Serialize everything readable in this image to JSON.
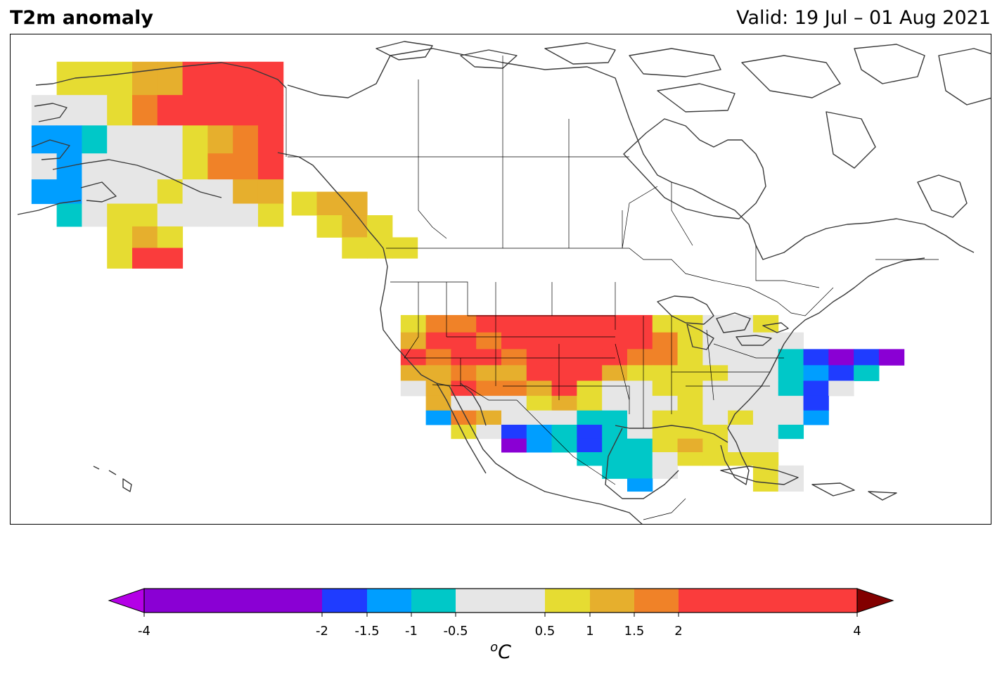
{
  "header": {
    "title": "T2m anomaly",
    "valid": "Valid: 19 Jul – 01 Aug 2021"
  },
  "colors": {
    "-4": "#8a00d4",
    "-2": "#1f3cff",
    "-1.5": "#009eff",
    "-1": "#00c8c8",
    "0": "#e6e6e6",
    "0.5": "#e6dc32",
    "1": "#e6af2d",
    "1.5": "#f08228",
    "2": "#fa3c3c",
    "4": "#820000",
    "coast": "#3a3a3a",
    "border": "#000000"
  },
  "legend": {
    "unit_base": "C",
    "unit_sup": "o",
    "bins": [
      {
        "from": -4,
        "to": -2,
        "color": "#8a00d4"
      },
      {
        "from": -2,
        "to": -1.5,
        "color": "#1f3cff"
      },
      {
        "from": -1.5,
        "to": -1,
        "color": "#009eff"
      },
      {
        "from": -1,
        "to": -0.5,
        "color": "#00c8c8"
      },
      {
        "from": -0.5,
        "to": 0.5,
        "color": "#e6e6e6"
      },
      {
        "from": 0.5,
        "to": 1,
        "color": "#e6dc32"
      },
      {
        "from": 1,
        "to": 1.5,
        "color": "#e6af2d"
      },
      {
        "from": 1.5,
        "to": 2,
        "color": "#f08228"
      },
      {
        "from": 2,
        "to": 4,
        "color": "#fa3c3c"
      }
    ],
    "under_color": "#b400e6",
    "over_color": "#820000",
    "ticks": [
      "-4",
      "-2",
      "-1.5",
      "-1",
      "-0.5",
      "0.5",
      "1",
      "1.5",
      "2",
      "4"
    ]
  },
  "map": {
    "region": "North America",
    "projection": "Mercator",
    "anomaly_cells": [
      {
        "lon": -165,
        "lat": 70,
        "value": 0.6
      },
      {
        "lon": -162,
        "lat": 70,
        "value": 0.6
      },
      {
        "lon": -159,
        "lat": 70,
        "value": 0.6
      },
      {
        "lon": -156,
        "lat": 70,
        "value": 1.2
      },
      {
        "lon": -153,
        "lat": 70,
        "value": 1.2
      },
      {
        "lon": -150,
        "lat": 70,
        "value": 2.5
      },
      {
        "lon": -147,
        "lat": 70,
        "value": 2.5
      },
      {
        "lon": -144,
        "lat": 70,
        "value": 2.5
      },
      {
        "lon": -141,
        "lat": 70,
        "value": 2.5
      },
      {
        "lon": -168,
        "lat": 68,
        "value": 0.0
      },
      {
        "lon": -165,
        "lat": 68,
        "value": 0.0
      },
      {
        "lon": -162,
        "lat": 68,
        "value": 0.0
      },
      {
        "lon": -159,
        "lat": 68,
        "value": 0.6
      },
      {
        "lon": -156,
        "lat": 68,
        "value": 1.7
      },
      {
        "lon": -153,
        "lat": 68,
        "value": 2.5
      },
      {
        "lon": -150,
        "lat": 68,
        "value": 2.5
      },
      {
        "lon": -147,
        "lat": 68,
        "value": 2.5
      },
      {
        "lon": -144,
        "lat": 68,
        "value": 2.5
      },
      {
        "lon": -141,
        "lat": 68,
        "value": 2.5
      },
      {
        "lon": -168,
        "lat": 66,
        "value": -1.2
      },
      {
        "lon": -165,
        "lat": 66,
        "value": -1.2
      },
      {
        "lon": -162,
        "lat": 66,
        "value": -0.7
      },
      {
        "lon": -159,
        "lat": 66,
        "value": 0.0
      },
      {
        "lon": -156,
        "lat": 66,
        "value": 0.0
      },
      {
        "lon": -153,
        "lat": 66,
        "value": 0.0
      },
      {
        "lon": -150,
        "lat": 66,
        "value": 0.6
      },
      {
        "lon": -147,
        "lat": 66,
        "value": 1.2
      },
      {
        "lon": -144,
        "lat": 66,
        "value": 1.7
      },
      {
        "lon": -141,
        "lat": 66,
        "value": 2.5
      },
      {
        "lon": -168,
        "lat": 64,
        "value": 0.0
      },
      {
        "lon": -165,
        "lat": 64,
        "value": -1.2
      },
      {
        "lon": -162,
        "lat": 64,
        "value": 0.0
      },
      {
        "lon": -159,
        "lat": 64,
        "value": 0.0
      },
      {
        "lon": -156,
        "lat": 64,
        "value": 0.0
      },
      {
        "lon": -153,
        "lat": 64,
        "value": 0.0
      },
      {
        "lon": -150,
        "lat": 64,
        "value": 0.6
      },
      {
        "lon": -147,
        "lat": 64,
        "value": 1.7
      },
      {
        "lon": -144,
        "lat": 64,
        "value": 1.7
      },
      {
        "lon": -141,
        "lat": 64,
        "value": 2.5
      },
      {
        "lon": -168,
        "lat": 62,
        "value": -1.2
      },
      {
        "lon": -165,
        "lat": 62,
        "value": -1.2
      },
      {
        "lon": -162,
        "lat": 62,
        "value": 0.0
      },
      {
        "lon": -159,
        "lat": 62,
        "value": 0.0
      },
      {
        "lon": -156,
        "lat": 62,
        "value": 0.0
      },
      {
        "lon": -153,
        "lat": 62,
        "value": 0.6
      },
      {
        "lon": -150,
        "lat": 62,
        "value": 0.0
      },
      {
        "lon": -147,
        "lat": 62,
        "value": 0.0
      },
      {
        "lon": -144,
        "lat": 62,
        "value": 1.2
      },
      {
        "lon": -141,
        "lat": 62,
        "value": 1.2
      },
      {
        "lon": -165,
        "lat": 60,
        "value": -0.7
      },
      {
        "lon": -162,
        "lat": 60,
        "value": 0.0
      },
      {
        "lon": -159,
        "lat": 60,
        "value": 0.6
      },
      {
        "lon": -156,
        "lat": 60,
        "value": 0.6
      },
      {
        "lon": -153,
        "lat": 60,
        "value": 0.0
      },
      {
        "lon": -150,
        "lat": 60,
        "value": 0.0
      },
      {
        "lon": -147,
        "lat": 60,
        "value": 0.0
      },
      {
        "lon": -144,
        "lat": 60,
        "value": 0.0
      },
      {
        "lon": -141,
        "lat": 60,
        "value": 0.6
      },
      {
        "lon": -159,
        "lat": 58,
        "value": 0.6
      },
      {
        "lon": -156,
        "lat": 58,
        "value": 1.2
      },
      {
        "lon": -153,
        "lat": 58,
        "value": 0.6
      },
      {
        "lon": -159,
        "lat": 56,
        "value": 0.6
      },
      {
        "lon": -156,
        "lat": 56,
        "value": 2.5
      },
      {
        "lon": -153,
        "lat": 56,
        "value": 2.5
      },
      {
        "lon": -137,
        "lat": 61,
        "value": 0.6
      },
      {
        "lon": -134,
        "lat": 61,
        "value": 1.2
      },
      {
        "lon": -131,
        "lat": 61,
        "value": 1.2
      },
      {
        "lon": -134,
        "lat": 59,
        "value": 0.6
      },
      {
        "lon": -131,
        "lat": 59,
        "value": 1.2
      },
      {
        "lon": -128,
        "lat": 59,
        "value": 0.6
      },
      {
        "lon": -131,
        "lat": 57,
        "value": 0.6
      },
      {
        "lon": -128,
        "lat": 57,
        "value": 0.6
      },
      {
        "lon": -125,
        "lat": 57,
        "value": 0.6
      },
      {
        "lon": -124,
        "lat": 49,
        "value": 0.6
      },
      {
        "lon": -121,
        "lat": 49,
        "value": 1.7
      },
      {
        "lon": -118,
        "lat": 49,
        "value": 1.7
      },
      {
        "lon": -115,
        "lat": 49,
        "value": 2.5
      },
      {
        "lon": -112,
        "lat": 49,
        "value": 2.5
      },
      {
        "lon": -109,
        "lat": 49,
        "value": 2.5
      },
      {
        "lon": -106,
        "lat": 49,
        "value": 2.5
      },
      {
        "lon": -103,
        "lat": 49,
        "value": 2.5
      },
      {
        "lon": -100,
        "lat": 49,
        "value": 2.5
      },
      {
        "lon": -97,
        "lat": 49,
        "value": 2.5
      },
      {
        "lon": -94,
        "lat": 49,
        "value": 0.6
      },
      {
        "lon": -91,
        "lat": 49,
        "value": 0.6
      },
      {
        "lon": -88,
        "lat": 49,
        "value": 0.0
      },
      {
        "lon": -85,
        "lat": 49,
        "value": 0.0
      },
      {
        "lon": -82,
        "lat": 49,
        "value": 0.6
      },
      {
        "lon": -124,
        "lat": 47,
        "value": 1.2
      },
      {
        "lon": -121,
        "lat": 47,
        "value": 2.5
      },
      {
        "lon": -118,
        "lat": 47,
        "value": 2.5
      },
      {
        "lon": -115,
        "lat": 47,
        "value": 1.7
      },
      {
        "lon": -112,
        "lat": 47,
        "value": 2.5
      },
      {
        "lon": -109,
        "lat": 47,
        "value": 2.5
      },
      {
        "lon": -106,
        "lat": 47,
        "value": 2.5
      },
      {
        "lon": -103,
        "lat": 47,
        "value": 2.5
      },
      {
        "lon": -100,
        "lat": 47,
        "value": 2.5
      },
      {
        "lon": -97,
        "lat": 47,
        "value": 2.5
      },
      {
        "lon": -94,
        "lat": 47,
        "value": 1.7
      },
      {
        "lon": -91,
        "lat": 47,
        "value": 0.6
      },
      {
        "lon": -88,
        "lat": 47,
        "value": 0.0
      },
      {
        "lon": -85,
        "lat": 47,
        "value": 0.0
      },
      {
        "lon": -82,
        "lat": 47,
        "value": 0.0
      },
      {
        "lon": -79,
        "lat": 47,
        "value": 0.0
      },
      {
        "lon": -124,
        "lat": 45,
        "value": 2.5
      },
      {
        "lon": -121,
        "lat": 45,
        "value": 1.7
      },
      {
        "lon": -118,
        "lat": 45,
        "value": 2.5
      },
      {
        "lon": -115,
        "lat": 45,
        "value": 2.5
      },
      {
        "lon": -112,
        "lat": 45,
        "value": 1.7
      },
      {
        "lon": -109,
        "lat": 45,
        "value": 2.5
      },
      {
        "lon": -106,
        "lat": 45,
        "value": 2.5
      },
      {
        "lon": -103,
        "lat": 45,
        "value": 2.5
      },
      {
        "lon": -100,
        "lat": 45,
        "value": 2.5
      },
      {
        "lon": -97,
        "lat": 45,
        "value": 1.7
      },
      {
        "lon": -94,
        "lat": 45,
        "value": 1.7
      },
      {
        "lon": -91,
        "lat": 45,
        "value": 0.6
      },
      {
        "lon": -88,
        "lat": 45,
        "value": 0.0
      },
      {
        "lon": -85,
        "lat": 45,
        "value": 0.0
      },
      {
        "lon": -82,
        "lat": 45,
        "value": 0.0
      },
      {
        "lon": -79,
        "lat": 45,
        "value": -0.7
      },
      {
        "lon": -76,
        "lat": 45,
        "value": -1.7
      },
      {
        "lon": -73,
        "lat": 45,
        "value": -2.5
      },
      {
        "lon": -70,
        "lat": 45,
        "value": -1.7
      },
      {
        "lon": -67,
        "lat": 45,
        "value": -2.5
      },
      {
        "lon": -124,
        "lat": 43,
        "value": 1.2
      },
      {
        "lon": -121,
        "lat": 43,
        "value": 1.2
      },
      {
        "lon": -118,
        "lat": 43,
        "value": 1.7
      },
      {
        "lon": -115,
        "lat": 43,
        "value": 1.2
      },
      {
        "lon": -112,
        "lat": 43,
        "value": 1.2
      },
      {
        "lon": -109,
        "lat": 43,
        "value": 2.5
      },
      {
        "lon": -106,
        "lat": 43,
        "value": 2.5
      },
      {
        "lon": -103,
        "lat": 43,
        "value": 2.5
      },
      {
        "lon": -100,
        "lat": 43,
        "value": 1.2
      },
      {
        "lon": -97,
        "lat": 43,
        "value": 0.6
      },
      {
        "lon": -94,
        "lat": 43,
        "value": 0.6
      },
      {
        "lon": -91,
        "lat": 43,
        "value": 0.6
      },
      {
        "lon": -88,
        "lat": 43,
        "value": 0.6
      },
      {
        "lon": -85,
        "lat": 43,
        "value": 0.0
      },
      {
        "lon": -82,
        "lat": 43,
        "value": 0.0
      },
      {
        "lon": -79,
        "lat": 43,
        "value": -0.7
      },
      {
        "lon": -76,
        "lat": 43,
        "value": -1.2
      },
      {
        "lon": -73,
        "lat": 43,
        "value": -1.7
      },
      {
        "lon": -70,
        "lat": 43,
        "value": -0.7
      },
      {
        "lon": -124,
        "lat": 41,
        "value": 0.0
      },
      {
        "lon": -121,
        "lat": 41,
        "value": 1.2
      },
      {
        "lon": -118,
        "lat": 41,
        "value": 2.5
      },
      {
        "lon": -115,
        "lat": 41,
        "value": 1.7
      },
      {
        "lon": -112,
        "lat": 41,
        "value": 1.7
      },
      {
        "lon": -109,
        "lat": 41,
        "value": 1.2
      },
      {
        "lon": -106,
        "lat": 41,
        "value": 2.5
      },
      {
        "lon": -103,
        "lat": 41,
        "value": 0.6
      },
      {
        "lon": -100,
        "lat": 41,
        "value": 0.0
      },
      {
        "lon": -97,
        "lat": 41,
        "value": 0.0
      },
      {
        "lon": -94,
        "lat": 41,
        "value": 0.6
      },
      {
        "lon": -91,
        "lat": 41,
        "value": 0.6
      },
      {
        "lon": -88,
        "lat": 41,
        "value": 0.0
      },
      {
        "lon": -85,
        "lat": 41,
        "value": 0.0
      },
      {
        "lon": -82,
        "lat": 41,
        "value": 0.0
      },
      {
        "lon": -79,
        "lat": 41,
        "value": -0.7
      },
      {
        "lon": -76,
        "lat": 41,
        "value": -1.7
      },
      {
        "lon": -73,
        "lat": 41,
        "value": 0.0
      },
      {
        "lon": -121,
        "lat": 39,
        "value": 1.2
      },
      {
        "lon": -118,
        "lat": 39,
        "value": 0.0
      },
      {
        "lon": -115,
        "lat": 39,
        "value": 0.0
      },
      {
        "lon": -112,
        "lat": 39,
        "value": 0.0
      },
      {
        "lon": -109,
        "lat": 39,
        "value": 0.6
      },
      {
        "lon": -106,
        "lat": 39,
        "value": 1.2
      },
      {
        "lon": -103,
        "lat": 39,
        "value": 0.6
      },
      {
        "lon": -100,
        "lat": 39,
        "value": 0.0
      },
      {
        "lon": -97,
        "lat": 39,
        "value": 0.0
      },
      {
        "lon": -94,
        "lat": 39,
        "value": 0.0
      },
      {
        "lon": -91,
        "lat": 39,
        "value": 0.6
      },
      {
        "lon": -88,
        "lat": 39,
        "value": 0.0
      },
      {
        "lon": -85,
        "lat": 39,
        "value": 0.0
      },
      {
        "lon": -82,
        "lat": 39,
        "value": 0.0
      },
      {
        "lon": -79,
        "lat": 39,
        "value": 0.0
      },
      {
        "lon": -76,
        "lat": 39,
        "value": -1.7
      },
      {
        "lon": -121,
        "lat": 37,
        "value": -1.2
      },
      {
        "lon": -118,
        "lat": 37,
        "value": 1.7
      },
      {
        "lon": -115,
        "lat": 37,
        "value": 1.2
      },
      {
        "lon": -112,
        "lat": 37,
        "value": 0.0
      },
      {
        "lon": -109,
        "lat": 37,
        "value": 0.0
      },
      {
        "lon": -106,
        "lat": 37,
        "value": 0.0
      },
      {
        "lon": -103,
        "lat": 37,
        "value": -0.7
      },
      {
        "lon": -100,
        "lat": 37,
        "value": -0.7
      },
      {
        "lon": -97,
        "lat": 37,
        "value": 0.0
      },
      {
        "lon": -94,
        "lat": 37,
        "value": 0.6
      },
      {
        "lon": -91,
        "lat": 37,
        "value": 0.6
      },
      {
        "lon": -88,
        "lat": 37,
        "value": 0.0
      },
      {
        "lon": -85,
        "lat": 37,
        "value": 0.6
      },
      {
        "lon": -82,
        "lat": 37,
        "value": 0.0
      },
      {
        "lon": -79,
        "lat": 37,
        "value": 0.0
      },
      {
        "lon": -76,
        "lat": 37,
        "value": -1.2
      },
      {
        "lon": -118,
        "lat": 35,
        "value": 0.6
      },
      {
        "lon": -115,
        "lat": 35,
        "value": 0.0
      },
      {
        "lon": -112,
        "lat": 35,
        "value": -1.7
      },
      {
        "lon": -109,
        "lat": 35,
        "value": -1.2
      },
      {
        "lon": -106,
        "lat": 35,
        "value": -0.7
      },
      {
        "lon": -103,
        "lat": 35,
        "value": -1.7
      },
      {
        "lon": -100,
        "lat": 35,
        "value": -0.7
      },
      {
        "lon": -97,
        "lat": 35,
        "value": 0.0
      },
      {
        "lon": -94,
        "lat": 35,
        "value": 0.6
      },
      {
        "lon": -91,
        "lat": 35,
        "value": 0.6
      },
      {
        "lon": -88,
        "lat": 35,
        "value": 0.6
      },
      {
        "lon": -85,
        "lat": 35,
        "value": 0.0
      },
      {
        "lon": -82,
        "lat": 35,
        "value": 0.0
      },
      {
        "lon": -79,
        "lat": 35,
        "value": -0.7
      },
      {
        "lon": -112,
        "lat": 33,
        "value": -2.5
      },
      {
        "lon": -109,
        "lat": 33,
        "value": -1.2
      },
      {
        "lon": -106,
        "lat": 33,
        "value": -0.7
      },
      {
        "lon": -103,
        "lat": 33,
        "value": -1.7
      },
      {
        "lon": -100,
        "lat": 33,
        "value": -0.7
      },
      {
        "lon": -97,
        "lat": 33,
        "value": -0.7
      },
      {
        "lon": -94,
        "lat": 33,
        "value": 0.6
      },
      {
        "lon": -91,
        "lat": 33,
        "value": 1.2
      },
      {
        "lon": -88,
        "lat": 33,
        "value": 0.6
      },
      {
        "lon": -85,
        "lat": 33,
        "value": 0.0
      },
      {
        "lon": -82,
        "lat": 33,
        "value": 0.0
      },
      {
        "lon": -103,
        "lat": 31,
        "value": -0.7
      },
      {
        "lon": -100,
        "lat": 31,
        "value": -0.7
      },
      {
        "lon": -97,
        "lat": 31,
        "value": -0.7
      },
      {
        "lon": -94,
        "lat": 31,
        "value": 0.0
      },
      {
        "lon": -91,
        "lat": 31,
        "value": 0.6
      },
      {
        "lon": -88,
        "lat": 31,
        "value": 0.6
      },
      {
        "lon": -85,
        "lat": 31,
        "value": 0.6
      },
      {
        "lon": -82,
        "lat": 31,
        "value": 0.6
      },
      {
        "lon": -100,
        "lat": 29,
        "value": -0.7
      },
      {
        "lon": -97,
        "lat": 29,
        "value": -0.7
      },
      {
        "lon": -94,
        "lat": 29,
        "value": 0.0
      },
      {
        "lon": -82,
        "lat": 29,
        "value": 0.6
      },
      {
        "lon": -79,
        "lat": 29,
        "value": 0.0
      },
      {
        "lon": -97,
        "lat": 27,
        "value": -1.2
      },
      {
        "lon": -82,
        "lat": 27,
        "value": 0.6
      },
      {
        "lon": -79,
        "lat": 27,
        "value": 0.0
      }
    ]
  }
}
